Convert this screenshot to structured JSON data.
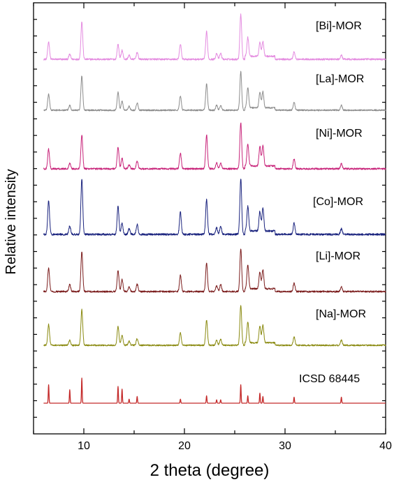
{
  "chart_data": {
    "type": "line",
    "xlabel": "2 theta (degree)",
    "ylabel": "Relative intensity",
    "xlim": [
      5,
      40
    ],
    "xticks": [
      10,
      20,
      30,
      40
    ],
    "grid": false,
    "legend": "labels placed on right side of each pattern",
    "peak_positions": [
      6.5,
      8.6,
      9.8,
      13.4,
      13.8,
      14.5,
      15.3,
      19.6,
      22.2,
      23.2,
      23.6,
      25.6,
      26.3,
      27.5,
      27.8,
      30.9,
      35.6
    ],
    "series": [
      {
        "name": "[Bi]-MOR",
        "color": "#e48ce0",
        "peak_heights": [
          0.35,
          0.1,
          0.75,
          0.3,
          0.18,
          0.08,
          0.14,
          0.3,
          0.55,
          0.12,
          0.12,
          0.9,
          0.38,
          0.28,
          0.3,
          0.15,
          0.08
        ]
      },
      {
        "name": "[La]-MOR",
        "color": "#8c8c8c",
        "peak_heights": [
          0.4,
          0.12,
          0.85,
          0.45,
          0.22,
          0.1,
          0.18,
          0.35,
          0.65,
          0.12,
          0.12,
          0.95,
          0.5,
          0.38,
          0.4,
          0.2,
          0.12
        ]
      },
      {
        "name": "[Ni]-MOR",
        "color": "#c8247a",
        "peak_heights": [
          0.4,
          0.12,
          0.7,
          0.45,
          0.22,
          0.08,
          0.16,
          0.32,
          0.7,
          0.12,
          0.12,
          0.95,
          0.45,
          0.4,
          0.42,
          0.2,
          0.1
        ]
      },
      {
        "name": "[Co]-MOR",
        "color": "#1a237e",
        "peak_heights": [
          0.6,
          0.15,
          1.0,
          0.5,
          0.2,
          0.1,
          0.18,
          0.4,
          0.62,
          0.12,
          0.15,
          1.0,
          0.45,
          0.35,
          0.42,
          0.2,
          0.1
        ]
      },
      {
        "name": "[Li]-MOR",
        "color": "#7b1c1c",
        "peak_heights": [
          0.5,
          0.15,
          0.85,
          0.45,
          0.25,
          0.1,
          0.16,
          0.35,
          0.6,
          0.12,
          0.15,
          0.9,
          0.5,
          0.35,
          0.4,
          0.18,
          0.1
        ]
      },
      {
        "name": "[Na]-MOR",
        "color": "#8a8a10",
        "peak_heights": [
          0.5,
          0.12,
          0.85,
          0.45,
          0.25,
          0.1,
          0.16,
          0.3,
          0.6,
          0.12,
          0.15,
          0.95,
          0.5,
          0.4,
          0.42,
          0.2,
          0.12
        ]
      },
      {
        "name": "ICSD 68445",
        "color": "#c42a2a",
        "peak_heights": [
          0.55,
          0.4,
          0.75,
          0.5,
          0.42,
          0.12,
          0.2,
          0.12,
          0.22,
          0.1,
          0.1,
          0.55,
          0.22,
          0.3,
          0.2,
          0.18,
          0.18
        ]
      }
    ]
  }
}
